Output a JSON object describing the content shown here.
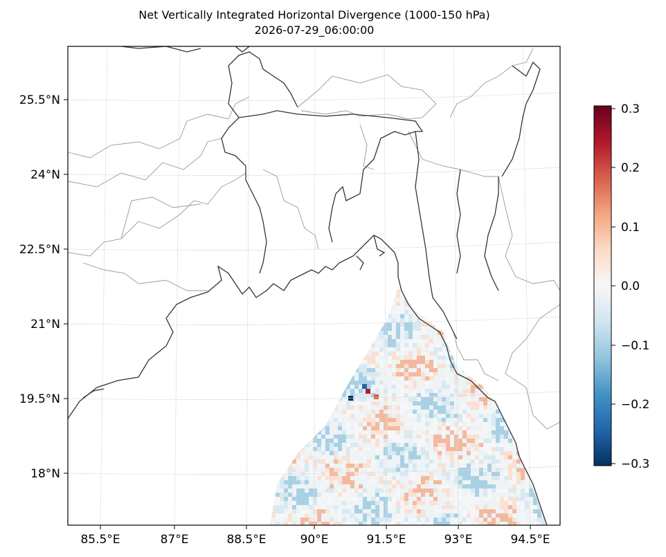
{
  "title": "Net Vertically Integrated Horizontal Divergence (1000-150 hPa)",
  "subtitle": "2026-07-29_06:00:00",
  "lon_ticks": [
    "85.5°E",
    "87°E",
    "88.5°E",
    "90°E",
    "91.5°E",
    "93°E",
    "94.5°E"
  ],
  "lat_ticks": [
    "25.5°N",
    "24°N",
    "22.5°N",
    "21°N",
    "19.5°N",
    "18°N"
  ],
  "colorbar": {
    "colormap": "RdBu_r",
    "range": [
      -0.3,
      0.3
    ],
    "ticks": [
      "0.3",
      "0.2",
      "0.1",
      "0.0",
      "−0.1",
      "−0.2",
      "−0.3"
    ]
  },
  "colors": {
    "coastline": "#333333",
    "borders": "#999999",
    "gridlines": "#dddddd"
  }
}
